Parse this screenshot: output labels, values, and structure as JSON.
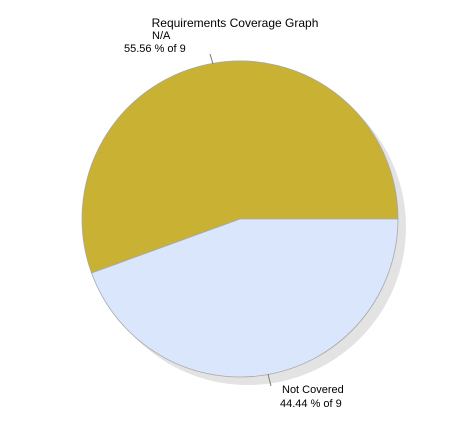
{
  "chart_data": {
    "type": "pie",
    "title": "Requirements Coverage Graph",
    "total": 9,
    "slices": [
      {
        "label": "N/A",
        "value": 5,
        "percent_text": "55.56 %  of 9",
        "color": "#c9b133"
      },
      {
        "label": "Not Covered",
        "value": 4,
        "percent_text": "44.44 %  of 9",
        "color": "#d9e6fb"
      }
    ]
  }
}
